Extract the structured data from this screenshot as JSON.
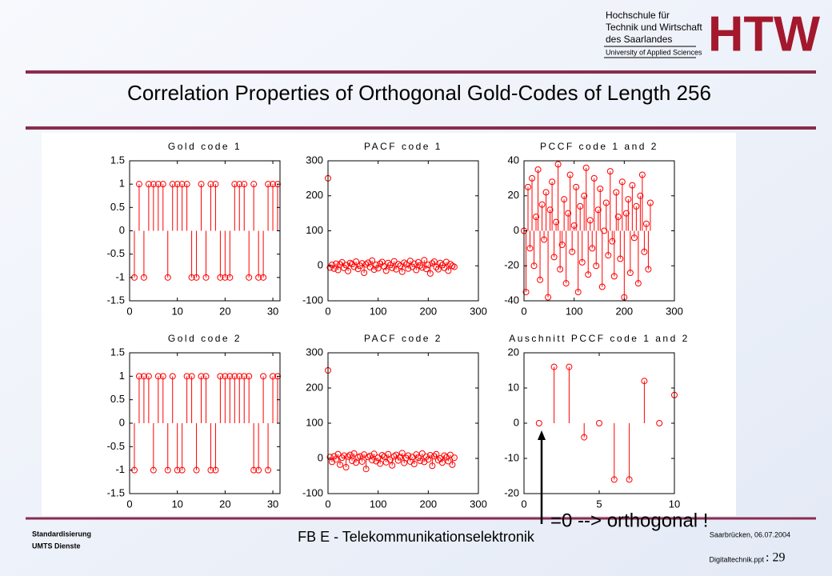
{
  "header": {
    "lines": [
      "Hochschule für",
      "Technik und Wirtschaft",
      "des Saarlandes",
      "University of Applied Sciences"
    ],
    "logo": "HTW"
  },
  "title": "Correlation Properties of Orthogonal Gold-Codes of Length 256",
  "annotation": "=0  --> orthogonal !",
  "footer": {
    "left": [
      "Standardisierung",
      "UMTS Dienste"
    ],
    "center": "FB E - Telekommunikationselektronik",
    "date": "Saarbrücken, 06.07.2004",
    "file": "Digitaltechnik.ppt",
    "page": ": 29"
  },
  "chart_data": [
    {
      "type": "stem",
      "title": "Gold code 1",
      "color": "#ff0000",
      "xlim": [
        0,
        31.5
      ],
      "ylim": [
        -1.5,
        1.5
      ],
      "xticks": [
        0,
        10,
        20,
        30
      ],
      "yticks": [
        -1.5,
        -1,
        -0.5,
        0,
        0.5,
        1,
        1.5
      ],
      "x": [
        1,
        2,
        3,
        4,
        5,
        6,
        7,
        8,
        9,
        10,
        11,
        12,
        13,
        14,
        15,
        16,
        17,
        18,
        19,
        20,
        21,
        22,
        23,
        24,
        25,
        26,
        27,
        28,
        29,
        30,
        31
      ],
      "values": [
        -1,
        1,
        -1,
        1,
        1,
        1,
        1,
        -1,
        1,
        1,
        1,
        1,
        -1,
        -1,
        1,
        -1,
        1,
        1,
        -1,
        -1,
        -1,
        1,
        1,
        1,
        -1,
        1,
        -1,
        -1,
        1,
        1,
        1
      ]
    },
    {
      "type": "stem",
      "title": "PACF code 1",
      "color": "#ff0000",
      "xlim": [
        0,
        300
      ],
      "ylim": [
        -100,
        300
      ],
      "xticks": [
        0,
        100,
        200,
        300
      ],
      "yticks": [
        -100,
        0,
        100,
        200,
        300
      ],
      "x": [
        0,
        4,
        8,
        12,
        16,
        20,
        24,
        28,
        32,
        36,
        40,
        44,
        48,
        52,
        56,
        60,
        64,
        68,
        72,
        76,
        80,
        84,
        88,
        92,
        96,
        100,
        104,
        108,
        112,
        116,
        120,
        124,
        128,
        132,
        136,
        140,
        144,
        148,
        152,
        156,
        160,
        164,
        168,
        172,
        176,
        180,
        184,
        188,
        192,
        196,
        200,
        204,
        208,
        212,
        216,
        220,
        224,
        228,
        232,
        236,
        240,
        244,
        248,
        252
      ],
      "values": [
        250,
        -5,
        3,
        -8,
        6,
        -12,
        4,
        10,
        -6,
        2,
        -15,
        8,
        5,
        -3,
        12,
        -9,
        0,
        7,
        -20,
        4,
        9,
        -4,
        15,
        -11,
        3,
        -7,
        6,
        11,
        -2,
        -14,
        8,
        2,
        -6,
        13,
        -10,
        5,
        0,
        -17,
        9,
        4,
        -8,
        14,
        -3,
        6,
        -12,
        10,
        1,
        -5,
        16,
        -9,
        3,
        -22,
        7,
        12,
        -4,
        -10,
        8,
        2,
        -6,
        11,
        -14,
        5,
        0,
        -3
      ]
    },
    {
      "type": "stem",
      "title": "PCCF code 1 and 2",
      "color": "#ff0000",
      "xlim": [
        0,
        300
      ],
      "ylim": [
        -40,
        40
      ],
      "xticks": [
        0,
        100,
        200,
        300
      ],
      "yticks": [
        -40,
        -20,
        0,
        20,
        40
      ],
      "x": [
        0,
        4,
        8,
        12,
        16,
        20,
        24,
        28,
        32,
        36,
        40,
        44,
        48,
        52,
        56,
        60,
        64,
        68,
        72,
        76,
        80,
        84,
        88,
        92,
        96,
        100,
        104,
        108,
        112,
        116,
        120,
        124,
        128,
        132,
        136,
        140,
        144,
        148,
        152,
        156,
        160,
        164,
        168,
        172,
        176,
        180,
        184,
        188,
        192,
        196,
        200,
        204,
        208,
        212,
        216,
        220,
        224,
        228,
        232,
        236,
        240,
        244,
        248,
        252
      ],
      "values": [
        0,
        -35,
        25,
        -10,
        30,
        -20,
        8,
        35,
        -28,
        15,
        -5,
        22,
        -38,
        12,
        28,
        -15,
        5,
        38,
        -22,
        -8,
        18,
        -30,
        10,
        32,
        -12,
        3,
        25,
        -35,
        14,
        -18,
        20,
        36,
        -25,
        6,
        -10,
        30,
        -20,
        12,
        24,
        -32,
        0,
        16,
        -14,
        34,
        -6,
        -26,
        22,
        8,
        -16,
        28,
        -38,
        10,
        18,
        -24,
        26,
        -4,
        14,
        -30,
        20,
        32,
        -12,
        4,
        -22,
        16
      ]
    },
    {
      "type": "stem",
      "title": "Gold code 2",
      "color": "#ff0000",
      "xlim": [
        0,
        31.5
      ],
      "ylim": [
        -1.5,
        1.5
      ],
      "xticks": [
        0,
        10,
        20,
        30
      ],
      "yticks": [
        -1.5,
        -1,
        -0.5,
        0,
        0.5,
        1,
        1.5
      ],
      "x": [
        1,
        2,
        3,
        4,
        5,
        6,
        7,
        8,
        9,
        10,
        11,
        12,
        13,
        14,
        15,
        16,
        17,
        18,
        19,
        20,
        21,
        22,
        23,
        24,
        25,
        26,
        27,
        28,
        29,
        30,
        31
      ],
      "values": [
        -1,
        1,
        1,
        1,
        -1,
        1,
        1,
        -1,
        1,
        -1,
        -1,
        1,
        1,
        -1,
        1,
        1,
        -1,
        -1,
        1,
        1,
        1,
        1,
        1,
        1,
        1,
        -1,
        -1,
        1,
        -1,
        1,
        1
      ]
    },
    {
      "type": "stem",
      "title": "PACF code 2",
      "color": "#ff0000",
      "xlim": [
        0,
        300
      ],
      "ylim": [
        -100,
        300
      ],
      "xticks": [
        0,
        100,
        200,
        300
      ],
      "yticks": [
        -100,
        0,
        100,
        200,
        300
      ],
      "x": [
        0,
        4,
        8,
        12,
        16,
        20,
        24,
        28,
        32,
        36,
        40,
        44,
        48,
        52,
        56,
        60,
        64,
        68,
        72,
        76,
        80,
        84,
        88,
        92,
        96,
        100,
        104,
        108,
        112,
        116,
        120,
        124,
        128,
        132,
        136,
        140,
        144,
        148,
        152,
        156,
        160,
        164,
        168,
        172,
        176,
        180,
        184,
        188,
        192,
        196,
        200,
        204,
        208,
        212,
        216,
        220,
        224,
        228,
        232,
        236,
        240,
        244,
        248,
        252
      ],
      "values": [
        250,
        4,
        -10,
        6,
        -3,
        12,
        -18,
        2,
        8,
        -25,
        5,
        10,
        -7,
        14,
        -12,
        3,
        6,
        -9,
        11,
        -30,
        4,
        7,
        -5,
        13,
        -8,
        2,
        -15,
        9,
        5,
        -11,
        12,
        -4,
        -20,
        6,
        10,
        -6,
        3,
        15,
        -13,
        1,
        8,
        -9,
        4,
        -16,
        11,
        2,
        -7,
        14,
        -10,
        5,
        -3,
        9,
        -21,
        6,
        12,
        -5,
        0,
        -12,
        8,
        3,
        -8,
        10,
        -18,
        2
      ]
    },
    {
      "type": "stem",
      "title": "Auschnitt PCCF code 1 and 2",
      "color": "#ff0000",
      "xlim": [
        0,
        10
      ],
      "ylim": [
        -20,
        20
      ],
      "xticks": [
        0,
        5,
        10
      ],
      "yticks": [
        -20,
        -10,
        0,
        10,
        20
      ],
      "x": [
        1,
        2,
        3,
        4,
        5,
        6,
        7,
        8,
        9,
        10
      ],
      "values": [
        0,
        16,
        16,
        -4,
        0,
        -16,
        -16,
        12,
        0,
        8
      ]
    }
  ]
}
